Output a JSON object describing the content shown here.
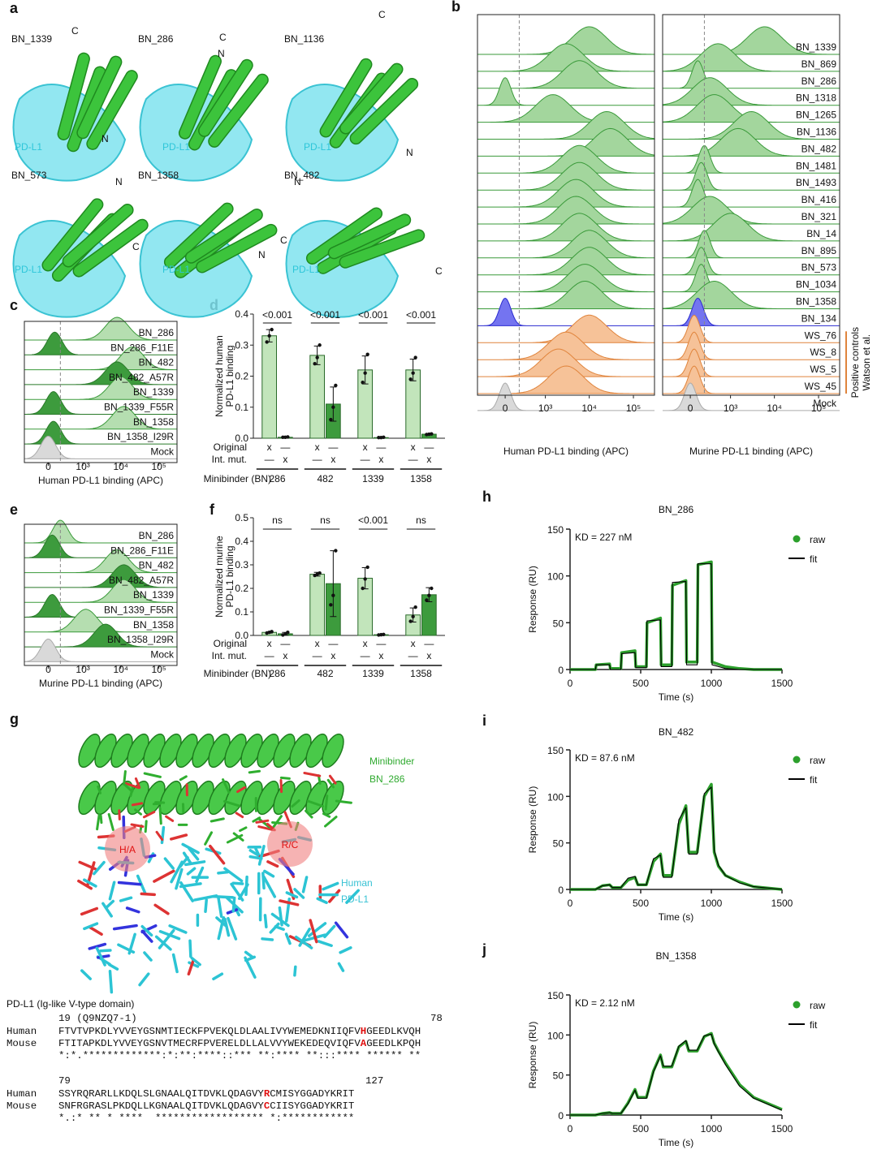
{
  "panels": [
    "a",
    "b",
    "c",
    "d",
    "e",
    "f",
    "g",
    "h",
    "i",
    "j"
  ],
  "structures": {
    "target_label": "PD-L1",
    "items": [
      {
        "name": "BN_1339",
        "termini": [
          "C",
          "N"
        ]
      },
      {
        "name": "BN_286",
        "termini": [
          "C",
          "N"
        ]
      },
      {
        "name": "BN_1136",
        "termini": [
          "C",
          "N"
        ]
      },
      {
        "name": "BN_573",
        "termini": [
          "N",
          "C"
        ]
      },
      {
        "name": "BN_1358",
        "termini": [
          "C",
          "N"
        ]
      },
      {
        "name": "BN_482",
        "termini": [
          "N",
          "C"
        ]
      }
    ]
  },
  "interface": {
    "binder": [
      "Minibinder",
      "BN_286"
    ],
    "target": [
      "Human",
      "PD-L1"
    ],
    "mutations": [
      "H/A",
      "R/C"
    ]
  },
  "alignment": {
    "title": "PD-L1 (Ig-like V-type domain)",
    "blocks": [
      {
        "start": "19 (Q9NZQ7-1)",
        "end": "78",
        "rows": [
          {
            "name": "Human",
            "pre": "FTVTVPKDLYVVEYGSNMTIECKFPVEKQLDLAALIVYWEMEDKNIIQFV",
            "site": "H",
            "post": "GEEDLKVQH"
          },
          {
            "name": "Mouse",
            "pre": "FTITAPKDLYVVEYGSNVTMECRFPVERELDLLALVVYWEKEDEQVIQFV",
            "site": "A",
            "post": "GEEDLKPQH"
          }
        ],
        "conservation": "*:*.*************:*:**:****::*** **:**** **:::**** ****** **"
      },
      {
        "start": "79",
        "end": "127",
        "rows": [
          {
            "name": "Human",
            "pre": "SSYRQRARLLKDQLSLGNAALQITDVKLQDAGVY",
            "site": "R",
            "post": "CMISYGGADYKRIT"
          },
          {
            "name": "Mouse",
            "pre": "SNFRGRASLPKDQLLKGNAALQITDVKLQDAGVY",
            "site": "C",
            "post": "CIISYGGADYKRIT"
          }
        ],
        "conservation": "*.:* ** * ****  ****************** *:************"
      }
    ]
  },
  "chart_data": [
    {
      "type": "ridgeline",
      "scale": "biexponential",
      "gate": 200,
      "categories": [
        "BN_1339",
        "BN_869",
        "BN_286",
        "BN_1318",
        "BN_1265",
        "BN_1136",
        "BN_482",
        "BN_1481",
        "BN_1493",
        "BN_416",
        "BN_321",
        "BN_14",
        "BN_895",
        "BN_573",
        "BN_1034",
        "BN_1358",
        "BN_134",
        "WS_76",
        "WS_8",
        "WS_5",
        "WS_45",
        "Mock"
      ],
      "colors": [
        "#a3d69d",
        "#a3d69d",
        "#a3d69d",
        "#a3d69d",
        "#a3d69d",
        "#a3d69d",
        "#a3d69d",
        "#a3d69d",
        "#a3d69d",
        "#a3d69d",
        "#a3d69d",
        "#a3d69d",
        "#a3d69d",
        "#a3d69d",
        "#a3d69d",
        "#a3d69d",
        "#7474f0",
        "#f6c298",
        "#f6c298",
        "#f6c298",
        "#f6c298",
        "#d9d9d9"
      ],
      "edge_colors": [
        "#3a9a3a",
        "#3a9a3a",
        "#3a9a3a",
        "#3a9a3a",
        "#3a9a3a",
        "#3a9a3a",
        "#3a9a3a",
        "#3a9a3a",
        "#3a9a3a",
        "#3a9a3a",
        "#3a9a3a",
        "#3a9a3a",
        "#3a9a3a",
        "#3a9a3a",
        "#3a9a3a",
        "#3a9a3a",
        "#2b2bd0",
        "#e0843c",
        "#e0843c",
        "#e0843c",
        "#e0843c",
        "#aaaaaa"
      ],
      "series": [
        {
          "xlabel": "Human PD-L1 binding (APC)",
          "values": [
            10000,
            3000,
            6000,
            0,
            1500,
            25000,
            30000,
            6000,
            6000,
            5000,
            5000,
            6000,
            10000,
            10000,
            8000,
            8000,
            0,
            10000,
            3000,
            2000,
            3000,
            0
          ]
        },
        {
          "xlabel": "Murine PD-L1 binding (APC)",
          "values": [
            6000,
            500,
            100,
            300,
            400,
            3000,
            1500,
            200,
            150,
            100,
            300,
            1000,
            200,
            150,
            150,
            400,
            100,
            50,
            50,
            50,
            50,
            0
          ]
        }
      ],
      "xlim": [
        -500,
        300000
      ],
      "xticks": [
        0,
        {
          "value": 1000,
          "label": "10³"
        },
        {
          "value": 10000,
          "label": "10⁴"
        },
        {
          "value": 100000,
          "label": "10⁵"
        }
      ],
      "annotation": [
        "Positive controls",
        "Watson et al."
      ]
    },
    {
      "type": "ridgeline",
      "scale": "biexponential",
      "gate": 200,
      "categories": [
        "BN_286",
        "BN_286_F11E",
        "BN_482",
        "BN_482_A57R",
        "BN_1339",
        "BN_1339_F55R",
        "BN_1358",
        "BN_1358_I29R",
        "Mock"
      ],
      "colors": [
        "#b5deb0",
        "#3d9b3d",
        "#b5deb0",
        "#3d9b3d",
        "#b5deb0",
        "#3d9b3d",
        "#b5deb0",
        "#3d9b3d",
        "#d9d9d9"
      ],
      "edge_colors": [
        "#3a9a3a",
        "#2a7a2a",
        "#3a9a3a",
        "#2a7a2a",
        "#3a9a3a",
        "#2a7a2a",
        "#3a9a3a",
        "#2a7a2a",
        "#aaaaaa"
      ],
      "series": [
        {
          "xlabel": "Human PD-L1 binding (APC)",
          "values": [
            8000,
            100,
            20000,
            8000,
            10000,
            80,
            12000,
            80,
            0
          ]
        }
      ],
      "xlim": [
        -500,
        300000
      ],
      "xticks": [
        0,
        {
          "value": 1000,
          "label": "10³"
        },
        {
          "value": 10000,
          "label": "10⁴"
        },
        {
          "value": 100000,
          "label": "10⁵"
        }
      ]
    },
    {
      "type": "bar",
      "categories": [
        "286",
        "482",
        "1339",
        "1358"
      ],
      "series": [
        {
          "name": "Original",
          "color": "#c2e5bb",
          "values": [
            0.33,
            0.267,
            0.22,
            0.22
          ],
          "errors": [
            0.02,
            0.03,
            0.045,
            0.035
          ],
          "points": [
            [
              0.31,
              0.33,
              0.35
            ],
            [
              0.24,
              0.26,
              0.3
            ],
            [
              0.18,
              0.21,
              0.27
            ],
            [
              0.19,
              0.21,
              0.26
            ]
          ],
          "marks": [
            "x",
            "x",
            "x",
            "x"
          ],
          "blanks": [
            "—",
            "—",
            "—",
            "—"
          ]
        },
        {
          "name": "Int. mut.",
          "color": "#3d9b3d",
          "values": [
            0.003,
            0.11,
            0.002,
            0.013
          ],
          "errors": [
            0.001,
            0.055,
            0.001,
            0.001
          ],
          "points": [
            [
              0.003,
              0.003,
              0.004
            ],
            [
              0.06,
              0.1,
              0.17
            ],
            [
              0.002,
              0.002,
              0.003
            ],
            [
              0.012,
              0.013,
              0.014
            ]
          ],
          "marks": [
            "x",
            "x",
            "x",
            "x"
          ],
          "blanks": [
            "—",
            "—",
            "—",
            "—"
          ]
        }
      ],
      "ylim": [
        0,
        0.4
      ],
      "yticks": [
        {
          "value": 0,
          "label": "0.0"
        },
        0.1,
        0.2,
        0.3,
        0.4
      ],
      "ylabel": [
        "Normalized human",
        "PD-L1 binding"
      ],
      "xlabel": "Minibinder (BN)",
      "annotations": [
        "<0.001",
        "<0.001",
        "<0.001",
        "<0.001"
      ]
    },
    {
      "type": "ridgeline",
      "scale": "biexponential",
      "gate": 200,
      "categories": [
        "BN_286",
        "BN_286_F11E",
        "BN_482",
        "BN_482_A57R",
        "BN_1339",
        "BN_1339_F55R",
        "BN_1358",
        "BN_1358_I29R",
        "Mock"
      ],
      "colors": [
        "#b5deb0",
        "#3d9b3d",
        "#b5deb0",
        "#3d9b3d",
        "#b5deb0",
        "#3d9b3d",
        "#b5deb0",
        "#3d9b3d",
        "#d9d9d9"
      ],
      "edge_colors": [
        "#3a9a3a",
        "#2a7a2a",
        "#3a9a3a",
        "#2a7a2a",
        "#3a9a3a",
        "#2a7a2a",
        "#3a9a3a",
        "#2a7a2a",
        "#aaaaaa"
      ],
      "series": [
        {
          "xlabel": "Murine PD-L1 binding (APC)",
          "values": [
            200,
            60,
            8000,
            12000,
            12000,
            60,
            1200,
            4000,
            0
          ]
        }
      ],
      "xlim": [
        -500,
        300000
      ],
      "xticks": [
        0,
        {
          "value": 1000,
          "label": "10³"
        },
        {
          "value": 10000,
          "label": "10⁴"
        },
        {
          "value": 100000,
          "label": "10⁵"
        }
      ]
    },
    {
      "type": "bar",
      "categories": [
        "286",
        "482",
        "1339",
        "1358"
      ],
      "series": [
        {
          "name": "Original",
          "color": "#c2e5bb",
          "values": [
            0.013,
            0.26,
            0.243,
            0.087
          ],
          "errors": [
            0.003,
            0.008,
            0.045,
            0.03
          ],
          "points": [
            [
              0.01,
              0.013,
              0.016
            ],
            [
              0.255,
              0.26,
              0.265
            ],
            [
              0.2,
              0.24,
              0.29
            ],
            [
              0.06,
              0.08,
              0.12
            ]
          ],
          "marks": [
            "x",
            "x",
            "x",
            "x"
          ],
          "blanks": [
            "—",
            "—",
            "—",
            "—"
          ]
        },
        {
          "name": "Int. mut.",
          "color": "#3d9b3d",
          "values": [
            0.007,
            0.22,
            0.003,
            0.173
          ],
          "errors": [
            0.006,
            0.14,
            0.001,
            0.03
          ],
          "points": [
            [
              0.002,
              0.006,
              0.013
            ],
            [
              0.13,
              0.17,
              0.36
            ],
            [
              0.002,
              0.003,
              0.004
            ],
            [
              0.15,
              0.17,
              0.2
            ]
          ],
          "marks": [
            "x",
            "x",
            "x",
            "x"
          ],
          "blanks": [
            "—",
            "—",
            "—",
            "—"
          ]
        }
      ],
      "ylim": [
        0,
        0.5
      ],
      "yticks": [
        {
          "value": 0,
          "label": "0.0"
        },
        0.1,
        0.2,
        0.3,
        0.4,
        0.5
      ],
      "ylabel": [
        "Normalized murine",
        "PD-L1 binding"
      ],
      "xlabel": "Minibinder (BN)",
      "annotations": [
        "ns",
        "ns",
        "<0.001",
        "ns"
      ]
    },
    {
      "type": "line",
      "title": "BN_286",
      "annotation": "KD = 227 nM",
      "x": [
        0,
        180,
        185,
        280,
        285,
        360,
        365,
        460,
        465,
        540,
        545,
        640,
        645,
        720,
        725,
        820,
        825,
        900,
        905,
        1000,
        1005,
        1100,
        1200,
        1300,
        1500
      ],
      "series": [
        {
          "name": "raw",
          "style": "points",
          "color": "#2ca02c",
          "values": [
            0,
            0,
            5,
            6,
            1,
            1,
            18,
            20,
            3,
            3,
            50,
            55,
            5,
            5,
            90,
            95,
            8,
            8,
            112,
            115,
            8,
            3,
            1,
            0,
            0
          ]
        },
        {
          "name": "fit",
          "style": "line",
          "color": "#000000",
          "values": [
            0,
            0,
            5,
            5,
            0,
            0,
            17,
            18,
            2,
            2,
            52,
            53,
            3,
            3,
            93,
            94,
            5,
            5,
            113,
            113,
            5,
            1,
            0,
            0,
            0
          ]
        }
      ],
      "xlim": [
        0,
        1500
      ],
      "xticks": [
        0,
        500,
        1000,
        1500
      ],
      "ylim": [
        0,
        150
      ],
      "yticks": [
        0,
        50,
        100,
        150
      ],
      "xlabel": "Time (s)",
      "ylabel": "Response (RU)"
    },
    {
      "type": "line",
      "title": "BN_482",
      "annotation": "KD = 87.6 nM",
      "x": [
        0,
        180,
        230,
        280,
        300,
        360,
        410,
        460,
        480,
        540,
        590,
        640,
        660,
        720,
        770,
        820,
        840,
        900,
        950,
        1000,
        1020,
        1050,
        1100,
        1200,
        1300,
        1500
      ],
      "series": [
        {
          "name": "raw",
          "style": "points",
          "color": "#2ca02c",
          "values": [
            0,
            0,
            4,
            5,
            2,
            2,
            10,
            13,
            5,
            5,
            30,
            38,
            15,
            15,
            70,
            90,
            40,
            40,
            100,
            113,
            40,
            25,
            15,
            8,
            3,
            0
          ]
        },
        {
          "name": "fit",
          "style": "line",
          "color": "#000000",
          "values": [
            0,
            0,
            4,
            5,
            2,
            2,
            12,
            14,
            5,
            5,
            33,
            37,
            13,
            13,
            75,
            88,
            38,
            38,
            103,
            110,
            42,
            26,
            15,
            7,
            3,
            0
          ]
        }
      ],
      "xlim": [
        0,
        1500
      ],
      "xticks": [
        0,
        500,
        1000,
        1500
      ],
      "ylim": [
        0,
        150
      ],
      "yticks": [
        0,
        50,
        100,
        150
      ],
      "xlabel": "Time (s)",
      "ylabel": "Response (RU)"
    },
    {
      "type": "line",
      "title": "BN_1358",
      "annotation": "KD = 2.12 nM",
      "x": [
        0,
        180,
        230,
        280,
        300,
        360,
        410,
        460,
        480,
        540,
        590,
        640,
        660,
        720,
        770,
        820,
        840,
        900,
        950,
        1000,
        1020,
        1050,
        1100,
        1200,
        1300,
        1500
      ],
      "series": [
        {
          "name": "raw",
          "style": "points",
          "color": "#2ca02c",
          "values": [
            0,
            0,
            2,
            3,
            2,
            2,
            15,
            32,
            22,
            22,
            55,
            75,
            60,
            60,
            85,
            92,
            80,
            80,
            98,
            102,
            90,
            80,
            65,
            38,
            22,
            7
          ]
        },
        {
          "name": "fit",
          "style": "line",
          "color": "#000000",
          "values": [
            0,
            0,
            2,
            3,
            2,
            2,
            14,
            31,
            21,
            21,
            54,
            74,
            61,
            61,
            86,
            93,
            81,
            81,
            99,
            101,
            89,
            79,
            63,
            36,
            21,
            6
          ]
        }
      ],
      "xlim": [
        0,
        1500
      ],
      "xticks": [
        0,
        500,
        1000,
        1500
      ],
      "ylim": [
        0,
        150
      ],
      "yticks": [
        0,
        50,
        100,
        150
      ],
      "xlabel": "Time (s)",
      "ylabel": "Response (RU)"
    }
  ]
}
